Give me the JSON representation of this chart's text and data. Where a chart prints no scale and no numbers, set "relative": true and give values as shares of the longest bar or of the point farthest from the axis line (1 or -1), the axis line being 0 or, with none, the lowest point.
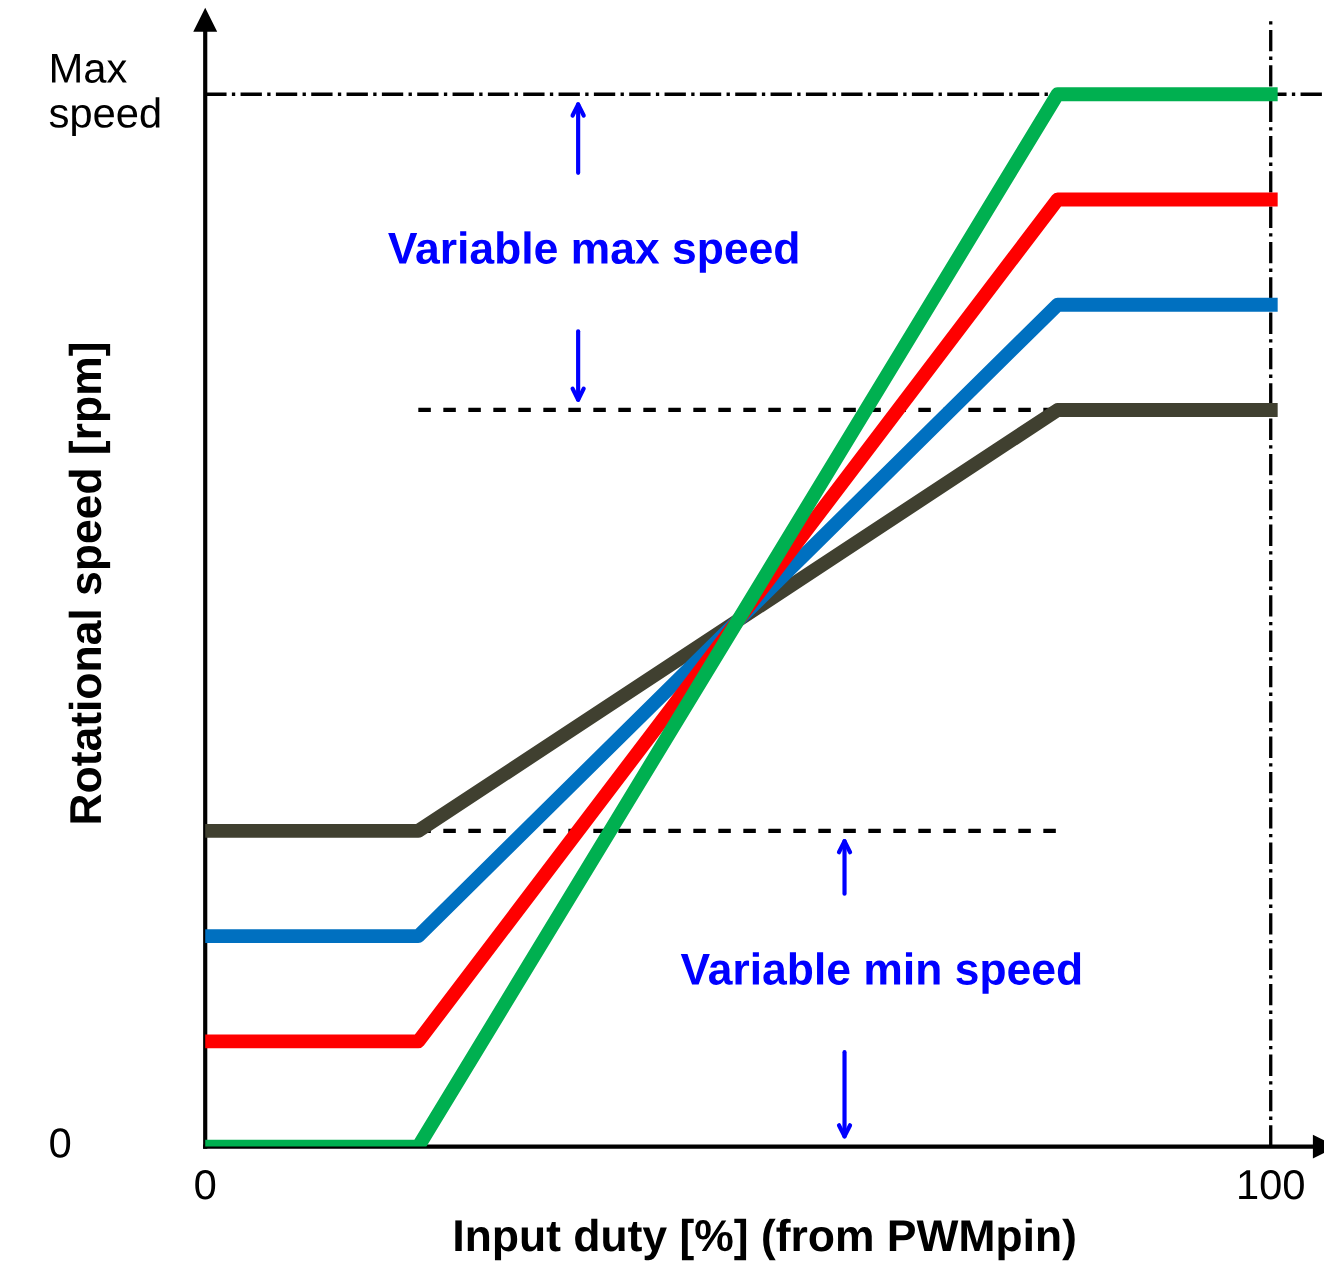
{
  "chart_data": {
    "type": "line",
    "relative": true,
    "xlabel": "Input duty [%] (from PWMpin)",
    "ylabel": "Rotational speed [rpm]",
    "x": [
      0,
      20,
      80,
      100
    ],
    "series": [
      {
        "color": "#404030",
        "values": [
          0.3,
          0.3,
          0.7,
          0.7
        ]
      },
      {
        "color": "#0070c0",
        "values": [
          0.2,
          0.2,
          0.8,
          0.8
        ]
      },
      {
        "color": "#ff0000",
        "values": [
          0.1,
          0.1,
          0.9,
          0.9
        ]
      },
      {
        "color": "#00b050",
        "values": [
          0,
          0,
          1,
          1
        ]
      },
      {
        "color": "#000000",
        "values": [
          null,
          0.7,
          0.7,
          null
        ],
        "line_style": "dashed"
      },
      {
        "color": "#000000",
        "values": [
          null,
          0.3,
          0.3,
          null
        ],
        "line_style": "dashed"
      }
    ],
    "xlim": [
      0,
      105
    ],
    "xticks": [
      0,
      100
    ],
    "ref_lines": [
      {
        "axis": "y",
        "value": 1,
        "label": "Max\nspeed",
        "color": "#000000",
        "line_style": "dashdot"
      },
      {
        "axis": "x",
        "value": 100,
        "color": "#000000",
        "line_style": "dashdot"
      }
    ],
    "annotations": [
      "Variable max speed",
      "Variable min speed",
      "0"
    ],
    "grid": false,
    "legend": false
  }
}
